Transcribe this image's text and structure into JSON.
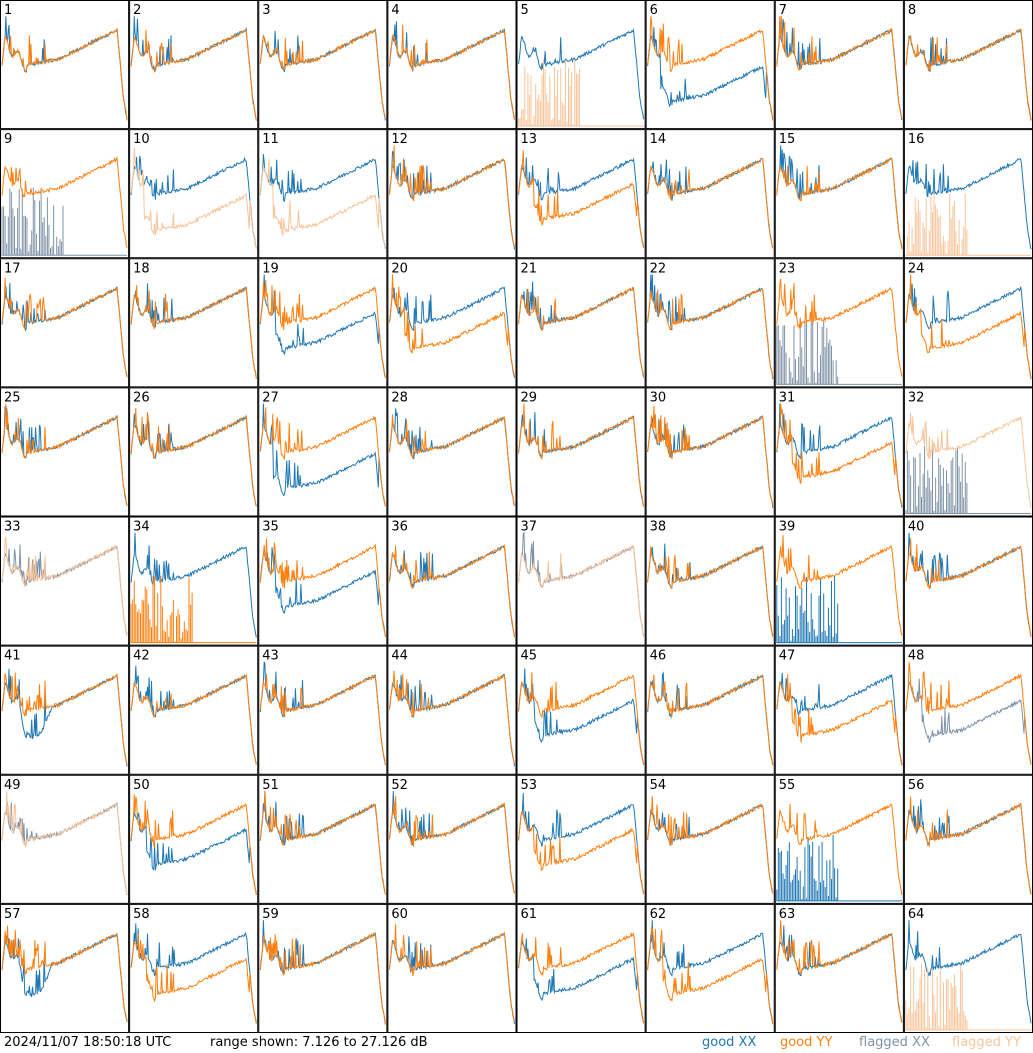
{
  "footer": {
    "timestamp": "2024/11/07 18:50:18 UTC",
    "range": "range shown: 7.126 to 27.126 dB",
    "legend": {
      "good_xx": "good XX",
      "good_yy": "good YY",
      "flagged_xx": "flagged XX",
      "flagged_yy": "flagged YY"
    }
  },
  "colors": {
    "good_xx": "#1f77b4",
    "good_yy": "#ff7f0e",
    "flagged_xx": "#7f93a8",
    "flagged_yy": "#f8c49a",
    "grid": "#000000"
  },
  "chart_data": {
    "type": "line",
    "layout": "8x8 small multiples",
    "ylim_db": [
      7.126,
      27.126
    ],
    "panels": [
      {
        "id": "1",
        "xx": "good",
        "yy": "good",
        "shape": "normal",
        "mod": 0
      },
      {
        "id": "2",
        "xx": "good",
        "yy": "good",
        "shape": "normal",
        "mod": 0
      },
      {
        "id": "3",
        "xx": "good",
        "yy": "good",
        "shape": "normal",
        "mod": 0
      },
      {
        "id": "4",
        "xx": "good",
        "yy": "good",
        "shape": "normal",
        "mod": 0
      },
      {
        "id": "5",
        "xx": "good",
        "yy": "flagged",
        "shape": "yy_dead",
        "mod": 0
      },
      {
        "id": "6",
        "xx": "good",
        "yy": "good",
        "shape": "xx_low_noisy",
        "mod": 0
      },
      {
        "id": "7",
        "xx": "good",
        "yy": "good",
        "shape": "normal",
        "mod": 0
      },
      {
        "id": "8",
        "xx": "good",
        "yy": "good",
        "shape": "normal",
        "mod": 0
      },
      {
        "id": "9",
        "xx": "flagged",
        "yy": "good",
        "shape": "xx_dead",
        "mod": 0
      },
      {
        "id": "10",
        "xx": "good",
        "yy": "flagged",
        "shape": "yy_low",
        "mod": 0
      },
      {
        "id": "11",
        "xx": "good",
        "yy": "flagged",
        "shape": "yy_low",
        "mod": 0
      },
      {
        "id": "12",
        "xx": "good",
        "yy": "good",
        "shape": "normal",
        "mod": 0
      },
      {
        "id": "13",
        "xx": "good",
        "yy": "good",
        "shape": "yy_lower",
        "mod": 0
      },
      {
        "id": "14",
        "xx": "good",
        "yy": "good",
        "shape": "normal",
        "mod": 0
      },
      {
        "id": "15",
        "xx": "good",
        "yy": "good",
        "shape": "normal",
        "mod": 0
      },
      {
        "id": "16",
        "xx": "good",
        "yy": "flagged",
        "shape": "yy_dead",
        "mod": 0
      },
      {
        "id": "17",
        "xx": "good",
        "yy": "good",
        "shape": "normal",
        "mod": 0
      },
      {
        "id": "18",
        "xx": "good",
        "yy": "good",
        "shape": "normal",
        "mod": 0
      },
      {
        "id": "19",
        "xx": "good",
        "yy": "good",
        "shape": "xx_lower",
        "mod": 0
      },
      {
        "id": "20",
        "xx": "good",
        "yy": "good",
        "shape": "yy_lower",
        "mod": 0
      },
      {
        "id": "21",
        "xx": "good",
        "yy": "good",
        "shape": "normal",
        "mod": 0
      },
      {
        "id": "22",
        "xx": "good",
        "yy": "good",
        "shape": "normal",
        "mod": 0
      },
      {
        "id": "23",
        "xx": "flagged",
        "yy": "good",
        "shape": "xx_dead",
        "mod": 0
      },
      {
        "id": "24",
        "xx": "good",
        "yy": "good",
        "shape": "yy_lower",
        "mod": 0
      },
      {
        "id": "25",
        "xx": "good",
        "yy": "good",
        "shape": "normal",
        "mod": 0
      },
      {
        "id": "26",
        "xx": "good",
        "yy": "good",
        "shape": "normal",
        "mod": 0
      },
      {
        "id": "27",
        "xx": "good",
        "yy": "good",
        "shape": "xx_low_noisy",
        "mod": 0
      },
      {
        "id": "28",
        "xx": "good",
        "yy": "good",
        "shape": "normal",
        "mod": 0
      },
      {
        "id": "29",
        "xx": "good",
        "yy": "good",
        "shape": "normal",
        "mod": 0
      },
      {
        "id": "30",
        "xx": "good",
        "yy": "good",
        "shape": "normal",
        "mod": 0
      },
      {
        "id": "31",
        "xx": "good",
        "yy": "good",
        "shape": "yy_lower",
        "mod": 0
      },
      {
        "id": "32",
        "xx": "flagged",
        "yy": "flagged",
        "shape": "xx_dead",
        "mod": 0
      },
      {
        "id": "33",
        "xx": "flagged",
        "yy": "flagged",
        "shape": "normal",
        "mod": 0
      },
      {
        "id": "34",
        "xx": "good",
        "yy": "good",
        "shape": "yy_dead",
        "mod": 0
      },
      {
        "id": "35",
        "xx": "good",
        "yy": "good",
        "shape": "xx_lower",
        "mod": 0
      },
      {
        "id": "36",
        "xx": "good",
        "yy": "good",
        "shape": "normal",
        "mod": 0
      },
      {
        "id": "37",
        "xx": "flagged",
        "yy": "flagged",
        "shape": "normal",
        "mod": 0
      },
      {
        "id": "38",
        "xx": "good",
        "yy": "good",
        "shape": "normal",
        "mod": 0
      },
      {
        "id": "39",
        "xx": "good",
        "yy": "good",
        "shape": "xx_dead",
        "mod": 0
      },
      {
        "id": "40",
        "xx": "good",
        "yy": "good",
        "shape": "normal",
        "mod": 0
      },
      {
        "id": "41",
        "xx": "good",
        "yy": "good",
        "shape": "normal",
        "mod": 1
      },
      {
        "id": "42",
        "xx": "good",
        "yy": "good",
        "shape": "normal",
        "mod": 0
      },
      {
        "id": "43",
        "xx": "good",
        "yy": "good",
        "shape": "normal",
        "mod": 0
      },
      {
        "id": "44",
        "xx": "good",
        "yy": "good",
        "shape": "normal",
        "mod": 0
      },
      {
        "id": "45",
        "xx": "good",
        "yy": "good",
        "shape": "xx_lower",
        "mod": 0
      },
      {
        "id": "46",
        "xx": "good",
        "yy": "good",
        "shape": "normal",
        "mod": 0
      },
      {
        "id": "47",
        "xx": "good",
        "yy": "good",
        "shape": "yy_lower",
        "mod": 0
      },
      {
        "id": "48",
        "xx": "flagged",
        "yy": "good",
        "shape": "xx_lower",
        "mod": 0
      },
      {
        "id": "49",
        "xx": "flagged",
        "yy": "flagged",
        "shape": "normal",
        "mod": 0
      },
      {
        "id": "50",
        "xx": "good",
        "yy": "good",
        "shape": "xx_lower",
        "mod": 0
      },
      {
        "id": "51",
        "xx": "good",
        "yy": "good",
        "shape": "normal",
        "mod": 0
      },
      {
        "id": "52",
        "xx": "good",
        "yy": "good",
        "shape": "normal",
        "mod": 0
      },
      {
        "id": "53",
        "xx": "good",
        "yy": "good",
        "shape": "yy_lower",
        "mod": 0
      },
      {
        "id": "54",
        "xx": "good",
        "yy": "good",
        "shape": "normal",
        "mod": 0
      },
      {
        "id": "55",
        "xx": "good",
        "yy": "good",
        "shape": "xx_dead",
        "mod": 0
      },
      {
        "id": "56",
        "xx": "good",
        "yy": "good",
        "shape": "normal",
        "mod": 0
      },
      {
        "id": "57",
        "xx": "good",
        "yy": "good",
        "shape": "normal",
        "mod": 1
      },
      {
        "id": "58",
        "xx": "good",
        "yy": "good",
        "shape": "yy_lower",
        "mod": 0
      },
      {
        "id": "59",
        "xx": "good",
        "yy": "good",
        "shape": "normal",
        "mod": 0
      },
      {
        "id": "60",
        "xx": "good",
        "yy": "good",
        "shape": "normal",
        "mod": 0
      },
      {
        "id": "61",
        "xx": "good",
        "yy": "good",
        "shape": "xx_lower",
        "mod": 0
      },
      {
        "id": "62",
        "xx": "good",
        "yy": "good",
        "shape": "yy_lower",
        "mod": 0
      },
      {
        "id": "63",
        "xx": "good",
        "yy": "good",
        "shape": "normal",
        "mod": 0
      },
      {
        "id": "64",
        "xx": "good",
        "yy": "flagged",
        "shape": "yy_dead",
        "mod": 0
      }
    ]
  }
}
